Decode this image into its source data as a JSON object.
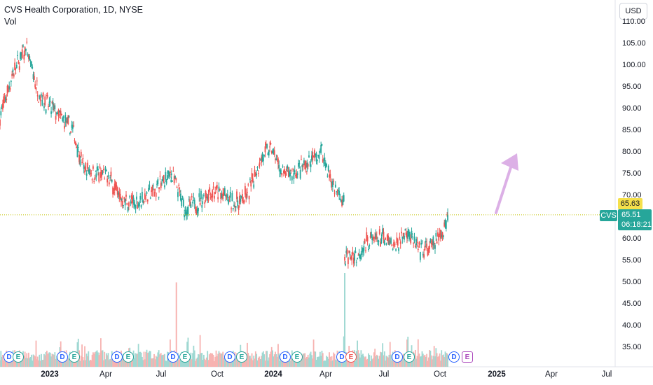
{
  "header": {
    "title": "CVS Health Corporation, 1D, NYSE",
    "vol_label": "Vol"
  },
  "currency": "USD",
  "price_axis": [
    "110.00",
    "105.00",
    "100.00",
    "95.00",
    "90.00",
    "85.00",
    "80.00",
    "75.00",
    "70.00",
    "60.00",
    "55.00",
    "50.00",
    "45.00",
    "40.00",
    "35.00"
  ],
  "time_axis": [
    {
      "label": "2023",
      "bold": true
    },
    {
      "label": "Apr",
      "bold": false
    },
    {
      "label": "Jul",
      "bold": false
    },
    {
      "label": "Oct",
      "bold": false
    },
    {
      "label": "2024",
      "bold": true
    },
    {
      "label": "Apr",
      "bold": false
    },
    {
      "label": "Jul",
      "bold": false
    },
    {
      "label": "Oct",
      "bold": false
    },
    {
      "label": "2025",
      "bold": true
    },
    {
      "label": "Apr",
      "bold": false
    },
    {
      "label": "Jul",
      "bold": false
    }
  ],
  "tags": {
    "prev_close": "65.63",
    "symbol": "CVS",
    "last_price": "65.51",
    "countdown": "06:18:21"
  },
  "events": [
    "D",
    "E",
    "D",
    "E",
    "D",
    "E",
    "D",
    "E",
    "D",
    "E",
    "D",
    "E",
    "D",
    "E",
    "D",
    "E",
    "D",
    "E"
  ],
  "colors": {
    "up": "#26a69a",
    "down": "#ef5350",
    "up_volume": "#9fd8d2",
    "down_volume": "#f7b3b1",
    "price_line": "#c0c000",
    "arrow": "#dcb0e6"
  },
  "chart_data": {
    "type": "candlestick",
    "symbol": "CVS",
    "interval": "1D",
    "exchange": "NYSE",
    "ylim": [
      32,
      112
    ],
    "last_price": 65.51,
    "previous_close": 65.63,
    "close_path": [
      {
        "date": "2022-10-20",
        "close": 88
      },
      {
        "date": "2022-11-10",
        "close": 98
      },
      {
        "date": "2022-12-01",
        "close": 104
      },
      {
        "date": "2022-12-20",
        "close": 94
      },
      {
        "date": "2023-01-05",
        "close": 91
      },
      {
        "date": "2023-01-25",
        "close": 88
      },
      {
        "date": "2023-02-15",
        "close": 85
      },
      {
        "date": "2023-03-05",
        "close": 76
      },
      {
        "date": "2023-03-25",
        "close": 75
      },
      {
        "date": "2023-04-15",
        "close": 74
      },
      {
        "date": "2023-05-05",
        "close": 69
      },
      {
        "date": "2023-05-25",
        "close": 68
      },
      {
        "date": "2023-06-15",
        "close": 70
      },
      {
        "date": "2023-07-05",
        "close": 72
      },
      {
        "date": "2023-07-25",
        "close": 75
      },
      {
        "date": "2023-08-15",
        "close": 67
      },
      {
        "date": "2023-09-05",
        "close": 68
      },
      {
        "date": "2023-09-25",
        "close": 71
      },
      {
        "date": "2023-10-15",
        "close": 70
      },
      {
        "date": "2023-11-05",
        "close": 68
      },
      {
        "date": "2023-11-25",
        "close": 70
      },
      {
        "date": "2023-12-15",
        "close": 78
      },
      {
        "date": "2024-01-02",
        "close": 81
      },
      {
        "date": "2024-01-20",
        "close": 75
      },
      {
        "date": "2024-02-10",
        "close": 75
      },
      {
        "date": "2024-03-01",
        "close": 77
      },
      {
        "date": "2024-03-25",
        "close": 80
      },
      {
        "date": "2024-04-10",
        "close": 73
      },
      {
        "date": "2024-04-28",
        "close": 68
      },
      {
        "date": "2024-05-02",
        "close": 56
      },
      {
        "date": "2024-05-20",
        "close": 56
      },
      {
        "date": "2024-06-10",
        "close": 60
      },
      {
        "date": "2024-06-30",
        "close": 60
      },
      {
        "date": "2024-07-20",
        "close": 58
      },
      {
        "date": "2024-08-10",
        "close": 62
      },
      {
        "date": "2024-08-30",
        "close": 57
      },
      {
        "date": "2024-09-20",
        "close": 58
      },
      {
        "date": "2024-10-05",
        "close": 61
      },
      {
        "date": "2024-10-15",
        "close": 65.51
      }
    ],
    "volume_spikes": [
      {
        "date": "2023-08-02",
        "volume_scale": 0.9
      },
      {
        "date": "2024-05-01",
        "volume_scale": 1.0
      }
    ],
    "annotation": "projected up arrow"
  }
}
